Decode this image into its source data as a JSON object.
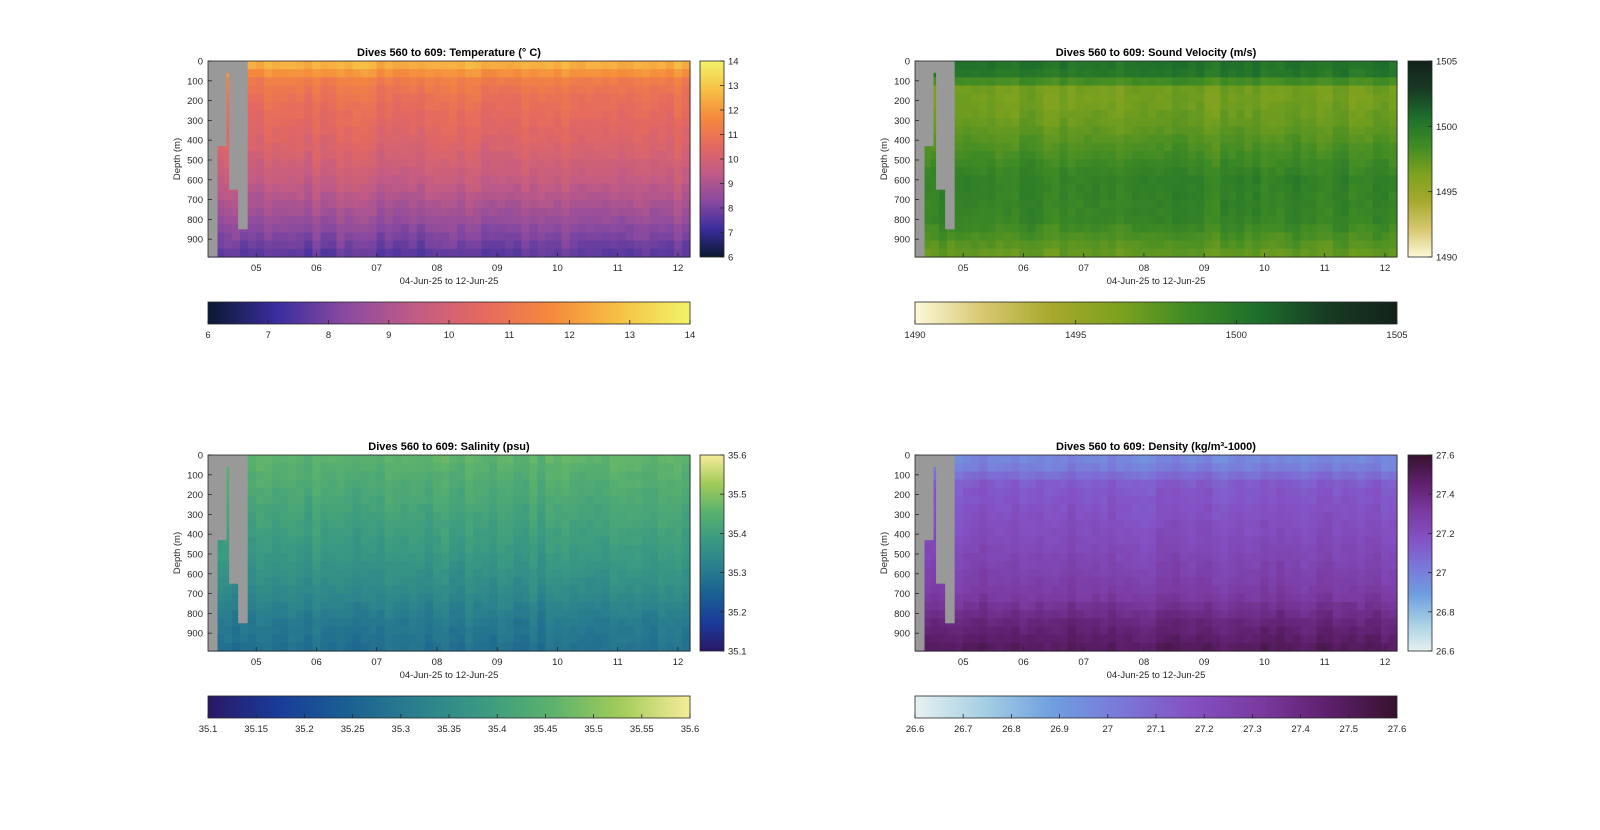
{
  "figure": {
    "xlabel": "04-Jun-25 to 12-Jun-25",
    "ylabel": "Depth (m)"
  },
  "chart_data": [
    {
      "type": "heatmap",
      "panel": "temperature",
      "title": "Dives 560 to 609: Temperature (° C)",
      "xlabel": "04-Jun-25 to 12-Jun-25",
      "ylabel": "Depth (m)",
      "x_range": [
        4.2,
        12.2
      ],
      "x_ticks": [
        5,
        6,
        7,
        8,
        9,
        10,
        11,
        12
      ],
      "x_tick_labels": [
        "05",
        "06",
        "07",
        "08",
        "09",
        "10",
        "11",
        "12"
      ],
      "y_range": [
        0,
        990
      ],
      "y_reversed": true,
      "y_ticks": [
        0,
        100,
        200,
        300,
        400,
        500,
        600,
        700,
        800,
        900
      ],
      "color_range": [
        6,
        14
      ],
      "colorbar_ticks": [
        6,
        7,
        8,
        9,
        10,
        11,
        12,
        13,
        14
      ],
      "horizontal_colorbar_ticks": [
        "6",
        "7",
        "8",
        "9",
        "10",
        "11",
        "12",
        "13",
        "14"
      ],
      "colormap": "thermal",
      "colormap_stops": [
        "#0b1830",
        "#3a2d9e",
        "#8a4aa0",
        "#c15b86",
        "#e5695f",
        "#f58a3c",
        "#f6c245",
        "#f1f36a"
      ],
      "profile_depths": [
        0,
        100,
        200,
        400,
        600,
        800,
        990
      ],
      "profile_values": [
        12.8,
        11.3,
        10.8,
        10.3,
        9.6,
        8.6,
        7.6
      ],
      "no_data_color": "#999999",
      "no_data_steps": [
        [
          4.2,
          4.35,
          990
        ],
        [
          4.35,
          4.5,
          430
        ],
        [
          4.5,
          4.55,
          60
        ],
        [
          4.55,
          4.7,
          650
        ],
        [
          4.7,
          4.85,
          850
        ]
      ]
    },
    {
      "type": "heatmap",
      "panel": "sound-velocity",
      "title": "Dives 560 to 609: Sound Velocity (m/s)",
      "xlabel": "04-Jun-25 to 12-Jun-25",
      "ylabel": "Depth (m)",
      "x_range": [
        4.2,
        12.2
      ],
      "x_ticks": [
        5,
        6,
        7,
        8,
        9,
        10,
        11,
        12
      ],
      "x_tick_labels": [
        "05",
        "06",
        "07",
        "08",
        "09",
        "10",
        "11",
        "12"
      ],
      "y_range": [
        0,
        990
      ],
      "y_reversed": true,
      "y_ticks": [
        0,
        100,
        200,
        300,
        400,
        500,
        600,
        700,
        800,
        900
      ],
      "color_range": [
        1490,
        1505
      ],
      "colorbar_ticks": [
        1490,
        1495,
        1500,
        1505
      ],
      "horizontal_colorbar_ticks": [
        "1490",
        "1495",
        "1500",
        "1505"
      ],
      "colormap": "speed",
      "colormap_stops": [
        "#fdf9d8",
        "#d6c770",
        "#a6a82c",
        "#7ba11e",
        "#3d8a25",
        "#1d6e2c",
        "#183a23",
        "#12231a"
      ],
      "profile_depths": [
        0,
        50,
        150,
        300,
        600,
        800,
        990
      ],
      "profile_values": [
        1500.2,
        1500.5,
        1496.5,
        1497.0,
        1499.3,
        1499.0,
        1497.0
      ],
      "no_data_color": "#999999",
      "no_data_steps": [
        [
          4.2,
          4.35,
          990
        ],
        [
          4.35,
          4.5,
          430
        ],
        [
          4.5,
          4.55,
          60
        ],
        [
          4.55,
          4.7,
          650
        ],
        [
          4.7,
          4.85,
          850
        ]
      ]
    },
    {
      "type": "heatmap",
      "panel": "salinity",
      "title": "Dives 560 to 609: Salinity (psu)",
      "xlabel": "04-Jun-25 to 12-Jun-25",
      "ylabel": "Depth (m)",
      "x_range": [
        4.2,
        12.2
      ],
      "x_ticks": [
        5,
        6,
        7,
        8,
        9,
        10,
        11,
        12
      ],
      "x_tick_labels": [
        "05",
        "06",
        "07",
        "08",
        "09",
        "10",
        "11",
        "12"
      ],
      "y_range": [
        0,
        990
      ],
      "y_reversed": true,
      "y_ticks": [
        0,
        100,
        200,
        300,
        400,
        500,
        600,
        700,
        800,
        900
      ],
      "color_range": [
        35.1,
        35.6
      ],
      "colorbar_ticks": [
        35.1,
        35.2,
        35.3,
        35.4,
        35.5,
        35.6
      ],
      "horizontal_colorbar_ticks": [
        "35.1",
        "35.15",
        "35.2",
        "35.25",
        "35.3",
        "35.35",
        "35.4",
        "35.45",
        "35.5",
        "35.55",
        "35.6"
      ],
      "colormap": "haline",
      "colormap_stops": [
        "#2a1866",
        "#1a3a9a",
        "#1a5f92",
        "#2a7f8e",
        "#3a9a82",
        "#5cb26c",
        "#a3cc5a",
        "#f6ec9a"
      ],
      "profile_depths": [
        0,
        100,
        300,
        500,
        700,
        850,
        990
      ],
      "profile_values": [
        35.46,
        35.44,
        35.41,
        35.38,
        35.34,
        35.3,
        35.28
      ],
      "no_data_color": "#999999",
      "no_data_steps": [
        [
          4.2,
          4.35,
          990
        ],
        [
          4.35,
          4.5,
          430
        ],
        [
          4.5,
          4.55,
          60
        ],
        [
          4.55,
          4.7,
          650
        ],
        [
          4.7,
          4.85,
          850
        ]
      ]
    },
    {
      "type": "heatmap",
      "panel": "density",
      "title": "Dives 560 to 609: Density (kg/m³-1000)",
      "xlabel": "04-Jun-25 to 12-Jun-25",
      "ylabel": "Depth (m)",
      "x_range": [
        4.2,
        12.2
      ],
      "x_ticks": [
        5,
        6,
        7,
        8,
        9,
        10,
        11,
        12
      ],
      "x_tick_labels": [
        "05",
        "06",
        "07",
        "08",
        "09",
        "10",
        "11",
        "12"
      ],
      "y_range": [
        0,
        990
      ],
      "y_reversed": true,
      "y_ticks": [
        0,
        100,
        200,
        300,
        400,
        500,
        600,
        700,
        800,
        900
      ],
      "color_range": [
        26.6,
        27.6
      ],
      "colorbar_ticks": [
        26.6,
        26.8,
        27,
        27.2,
        27.4,
        27.6
      ],
      "colorbar_tick_labels": [
        "26.6",
        "26.8",
        "27",
        "27.2",
        "27.4",
        "27.6"
      ],
      "horizontal_colorbar_ticks": [
        "26.6",
        "26.7",
        "26.8",
        "26.9",
        "27",
        "27.1",
        "27.2",
        "27.3",
        "27.4",
        "27.5",
        "27.6"
      ],
      "colormap": "dense",
      "colormap_stops": [
        "#e6f1f1",
        "#a6cfe3",
        "#6f9fe0",
        "#7a77d9",
        "#8451c4",
        "#7a3aa0",
        "#5e1f6d",
        "#36122d"
      ],
      "profile_depths": [
        0,
        60,
        150,
        400,
        700,
        850,
        990
      ],
      "profile_values": [
        26.96,
        27.0,
        27.14,
        27.2,
        27.3,
        27.42,
        27.5
      ],
      "no_data_color": "#999999",
      "no_data_steps": [
        [
          4.2,
          4.35,
          990
        ],
        [
          4.35,
          4.5,
          430
        ],
        [
          4.5,
          4.55,
          60
        ],
        [
          4.55,
          4.7,
          650
        ],
        [
          4.7,
          4.85,
          850
        ]
      ]
    }
  ]
}
